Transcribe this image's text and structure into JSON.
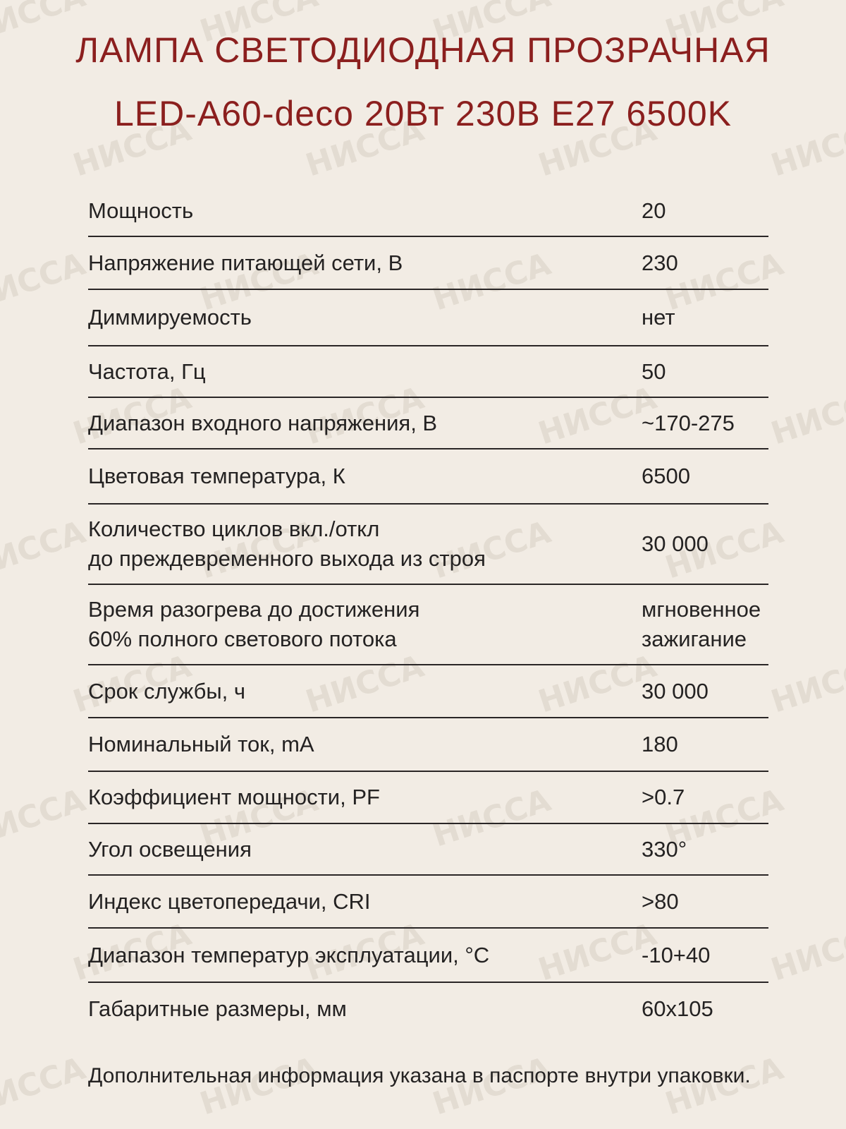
{
  "header": {
    "title_line1": "ЛАМПА СВЕТОДИОДНАЯ ПРОЗРАЧНАЯ",
    "title_line2": "LED-A60-deco 20Вт 230В E27 6500K"
  },
  "watermark": "НИССА",
  "table": {
    "rows": [
      [
        "Мощность",
        "20"
      ],
      [
        "Напряжение питающей сети, В",
        "230"
      ],
      [
        "Диммируемость",
        "нет"
      ],
      [
        "Частота, Гц",
        "50"
      ],
      [
        "Диапазон входного напряжения, В",
        "~170-275"
      ],
      [
        "Цветовая температура, К",
        "6500"
      ],
      [
        "Количество циклов вкл./откл\nдо преждевременного выхода из строя",
        "30 000"
      ],
      [
        "Время разогрева до достижения\n60% полного светового потока",
        "мгновенное\nзажигание"
      ],
      [
        "Срок службы, ч",
        "30 000"
      ],
      [
        "Номинальный ток, mA",
        "180"
      ],
      [
        "Коэффициент мощности, PF",
        ">0.7"
      ],
      [
        "Угол освещения",
        "330°"
      ],
      [
        "Индекс цветопередачи, CRI",
        ">80"
      ],
      [
        "Диапазон температур эксплуатации, °С",
        "-10+40"
      ],
      [
        "Габаритные размеры, мм",
        "60x105"
      ]
    ]
  },
  "footer": {
    "note": "Дополнительная информация указана в паспорте внутри упаковки."
  }
}
